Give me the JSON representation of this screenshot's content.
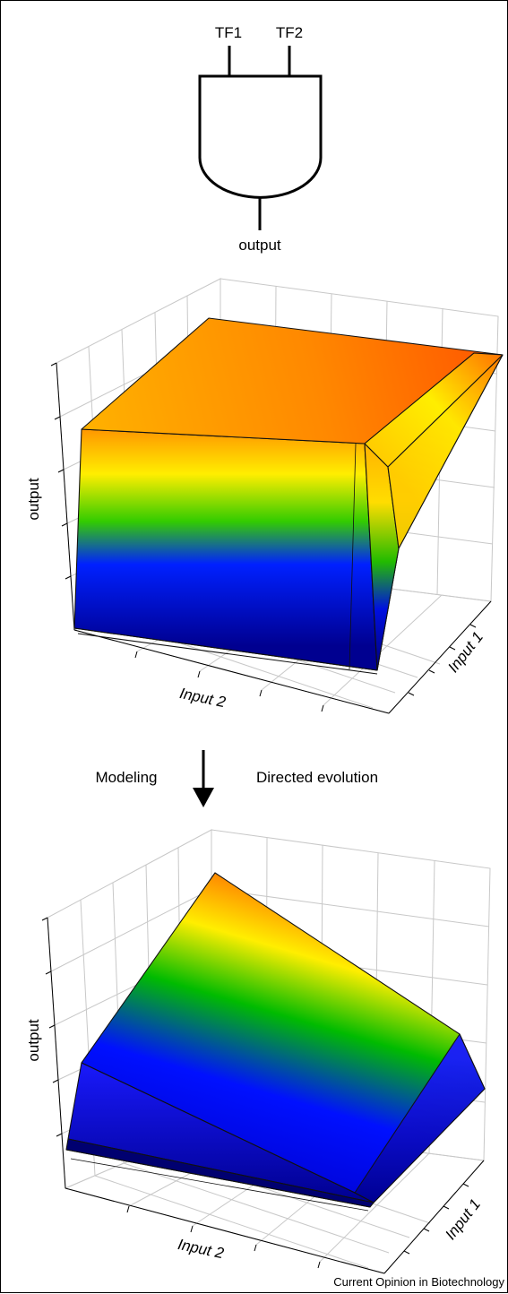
{
  "gate": {
    "input_1": "TF1",
    "input_2": "TF2",
    "output": "output"
  },
  "plot_top": {
    "z_axis_label": "output",
    "x_axis_label": "Input 2",
    "y_axis_label": "Input 1"
  },
  "transition": {
    "left_label": "Modeling",
    "right_label": "Directed evolution"
  },
  "plot_bottom": {
    "z_axis_label": "output",
    "x_axis_label": "Input 2",
    "y_axis_label": "Input 1"
  },
  "footer": {
    "credit": "Current Opinion in Biotechnology"
  },
  "colors": {
    "surface_high": "#ff6600",
    "surface_mid_yellow": "#ffee00",
    "surface_mid_green": "#00bb00",
    "surface_low": "#0000ee",
    "grid": "#cccccc",
    "axes": "#000000"
  }
}
